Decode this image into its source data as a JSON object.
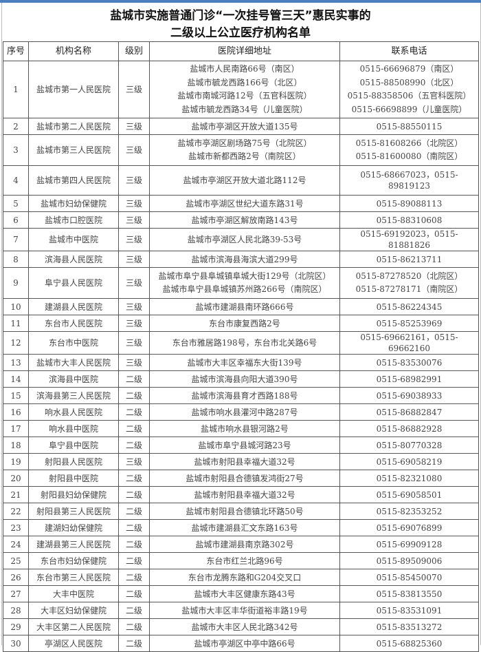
{
  "title_line1": "盐城市实施普通门诊“一次挂号管三天”惠民实事的",
  "title_line2": "二级以上公立医疗机构名单",
  "headers": [
    "序号",
    "机构名称",
    "级别",
    "医院详细地址",
    "联系电话"
  ],
  "rows": [
    {
      "no": "1",
      "name": "盐城市第一人民医院",
      "level": "三级",
      "address": [
        "盐城市人民南路66号（南区）",
        "盐城市毓龙西路166号（北区）",
        "盐城市南城河路12号（五官科医院）",
        "盐城市毓龙西路34号（儿童医院）"
      ],
      "phone": [
        "0515-66696879（南区）",
        "0515-88508990（北区）",
        "0515-88358506（五官科医院）",
        "0515-66698899（儿童医院）"
      ]
    },
    {
      "no": "2",
      "name": "盐城市第二人民医院",
      "level": "三级",
      "address": [
        "盐城市亭湖区开放大道135号"
      ],
      "phone": [
        "0515-88550115"
      ]
    },
    {
      "no": "3",
      "name": "盐城市第三人民医院",
      "level": "三级",
      "address": [
        "盐城市亭湖区剧场路75号（北院区）",
        "盐城市新都西路2号（南院区）"
      ],
      "phone": [
        "0515-81608266（北院区）",
        "0515-81600080（南院区）"
      ]
    },
    {
      "no": "4",
      "name": "盐城市第四人民医院",
      "level": "三级",
      "address": [
        "盐城市亭湖区开放大道北路112号"
      ],
      "phone": [
        "0515-68667023，0515-89819123"
      ]
    },
    {
      "no": "5",
      "name": "盐城市妇幼保健院",
      "level": "三级",
      "address": [
        "盐城市亭湖区世纪大道东路31号"
      ],
      "phone": [
        "0515-89088113"
      ]
    },
    {
      "no": "6",
      "name": "盐城市口腔医院",
      "level": "三级",
      "address": [
        "盐城市亭湖区解放南路143号"
      ],
      "phone": [
        "0515-88310608"
      ]
    },
    {
      "no": "7",
      "name": "盐城市中医院",
      "level": "三级",
      "address": [
        "盐城市亭湖区人民北路39-53号"
      ],
      "phone": [
        "0515-69192023，0515-81881826"
      ]
    },
    {
      "no": "8",
      "name": "滨海县人民医院",
      "level": "三级",
      "address": [
        "盐城市滨海县海滨大道299号"
      ],
      "phone": [
        "0515-86213711"
      ]
    },
    {
      "no": "9",
      "name": "阜宁县人民医院",
      "level": "三级",
      "address": [
        "盐城市阜宁县阜城镇阜城大街129号（北院区）",
        "盐城市阜宁县阜城镇苏州路266号（南院区）"
      ],
      "phone": [
        "0515-87278520（北院区）",
        "0515-87278171（南院区）"
      ]
    },
    {
      "no": "10",
      "name": "建湖县人民医院",
      "level": "三级",
      "address": [
        "盐城市建湖县南环路666号"
      ],
      "phone": [
        "0515-86224345"
      ]
    },
    {
      "no": "11",
      "name": "东台市人民医院",
      "level": "三级",
      "address": [
        "东台市康复西路2号"
      ],
      "phone": [
        "0515-85253969"
      ]
    },
    {
      "no": "12",
      "name": "东台市中医院",
      "level": "三级",
      "address": [
        "东台市雅居路198号，东台市北关路6号"
      ],
      "phone": [
        "0515-69662161，0515-69662160"
      ]
    },
    {
      "no": "13",
      "name": "盐城市大丰人民医院",
      "level": "三级",
      "address": [
        "盐城市大丰区幸福东大街139号"
      ],
      "phone": [
        "0515-83530076"
      ]
    },
    {
      "no": "14",
      "name": "滨海县中医院",
      "level": "二级",
      "address": [
        "盐城市滨海县向阳大道390号"
      ],
      "phone": [
        "0515-68982991"
      ]
    },
    {
      "no": "15",
      "name": "滨海县第三人民医院",
      "level": "二级",
      "address": [
        "盐城市滨海县育才西路188号"
      ],
      "phone": [
        "0515-69038933"
      ]
    },
    {
      "no": "16",
      "name": "响水县人民医院",
      "level": "二级",
      "address": [
        "盐城市响水县灌河中路287号"
      ],
      "phone": [
        "0515-86882847"
      ]
    },
    {
      "no": "17",
      "name": "响水县中医院",
      "level": "二级",
      "address": [
        "盐城市响水县银河路2号"
      ],
      "phone": [
        "0515-86882928"
      ]
    },
    {
      "no": "18",
      "name": "阜宁县中医院",
      "level": "二级",
      "address": [
        "盐城市阜宁县城河路23号"
      ],
      "phone": [
        "0515-80770328"
      ]
    },
    {
      "no": "19",
      "name": "射阳县人民医院",
      "level": "三级",
      "address": [
        "盐城市射阳县幸福大道32号"
      ],
      "phone": [
        "0515-69058219"
      ]
    },
    {
      "no": "20",
      "name": "射阳县中医院",
      "level": "二级",
      "address": [
        "盐城市射阳县合德镇发鸿街27号"
      ],
      "phone": [
        "0515-82321080"
      ]
    },
    {
      "no": "21",
      "name": "射阳县妇幼保健院",
      "level": "二级",
      "address": [
        "盐城市射阳县幸福大道32号"
      ],
      "phone": [
        "0515-69058501"
      ]
    },
    {
      "no": "22",
      "name": "射阳县第三人民医院",
      "level": "二级",
      "address": [
        "盐城市射阳县合德镇北环路50号"
      ],
      "phone": [
        "0515-82353252"
      ]
    },
    {
      "no": "23",
      "name": "建湖妇幼保健院",
      "level": "二级",
      "address": [
        "盐城市建湖县汇文东路163号"
      ],
      "phone": [
        "0515-69076899"
      ]
    },
    {
      "no": "24",
      "name": "建湖县第三人民医院",
      "level": "二级",
      "address": [
        "盐城市建湖县南京路302号"
      ],
      "phone": [
        "0515-69909128"
      ]
    },
    {
      "no": "25",
      "name": "东台市妇幼保健院",
      "level": "二级",
      "address": [
        "东台市红兰北路96号"
      ],
      "phone": [
        "0515-89509006"
      ]
    },
    {
      "no": "26",
      "name": "东台市第三人民医院",
      "level": "二级",
      "address": [
        "东台市龙腾东路和G204交叉口"
      ],
      "phone": [
        "0515-85450070"
      ]
    },
    {
      "no": "27",
      "name": "大丰中医院",
      "level": "二级",
      "address": [
        "盐城市大丰区健康东路43号"
      ],
      "phone": [
        "0515-83813550"
      ]
    },
    {
      "no": "28",
      "name": "大丰区妇幼保健院",
      "level": "二级",
      "address": [
        "盐城市大丰区丰华街道裕丰路19号"
      ],
      "phone": [
        "0515-83531091"
      ]
    },
    {
      "no": "29",
      "name": "大丰区第二人民医院",
      "level": "二级",
      "address": [
        "盐城市大丰区人民北路342号"
      ],
      "phone": [
        "0515-83513272"
      ]
    },
    {
      "no": "30",
      "name": "亭湖区人民医院",
      "level": "二级",
      "address": [
        "盐城市亭湖区中亭中路66号"
      ],
      "phone": [
        "0515-68825360"
      ]
    }
  ]
}
